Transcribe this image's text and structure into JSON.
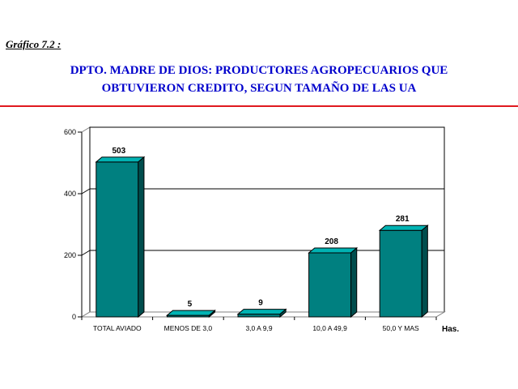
{
  "header": {
    "label": "Gráfico 7.2 :",
    "title_line1": "DPTO. MADRE DE DIOS: PRODUCTORES AGROPECUARIOS QUE",
    "title_line2": "OBTUVIERON CREDITO, SEGUN TAMAÑO DE LAS UA"
  },
  "colors": {
    "bar": "#008080",
    "bar_top": "#00b3b3",
    "bar_side": "#004d4d",
    "rule": "#e0181e",
    "title": "#0000cc"
  },
  "chart_data": {
    "type": "bar",
    "categories": [
      "TOTAL AVIADO",
      "MENOS DE 3,0",
      "3,0 A 9,9",
      "10,0 A 49,9",
      "50,0 Y MAS"
    ],
    "values": [
      503,
      5,
      9,
      208,
      281
    ],
    "data_labels": [
      "503",
      "5",
      "9",
      "208",
      "281"
    ],
    "xlabel": "Has.",
    "ylabel": "",
    "ylim": [
      0,
      600
    ],
    "yticks": [
      0,
      200,
      400,
      600
    ],
    "grid": true,
    "style": "3d"
  }
}
